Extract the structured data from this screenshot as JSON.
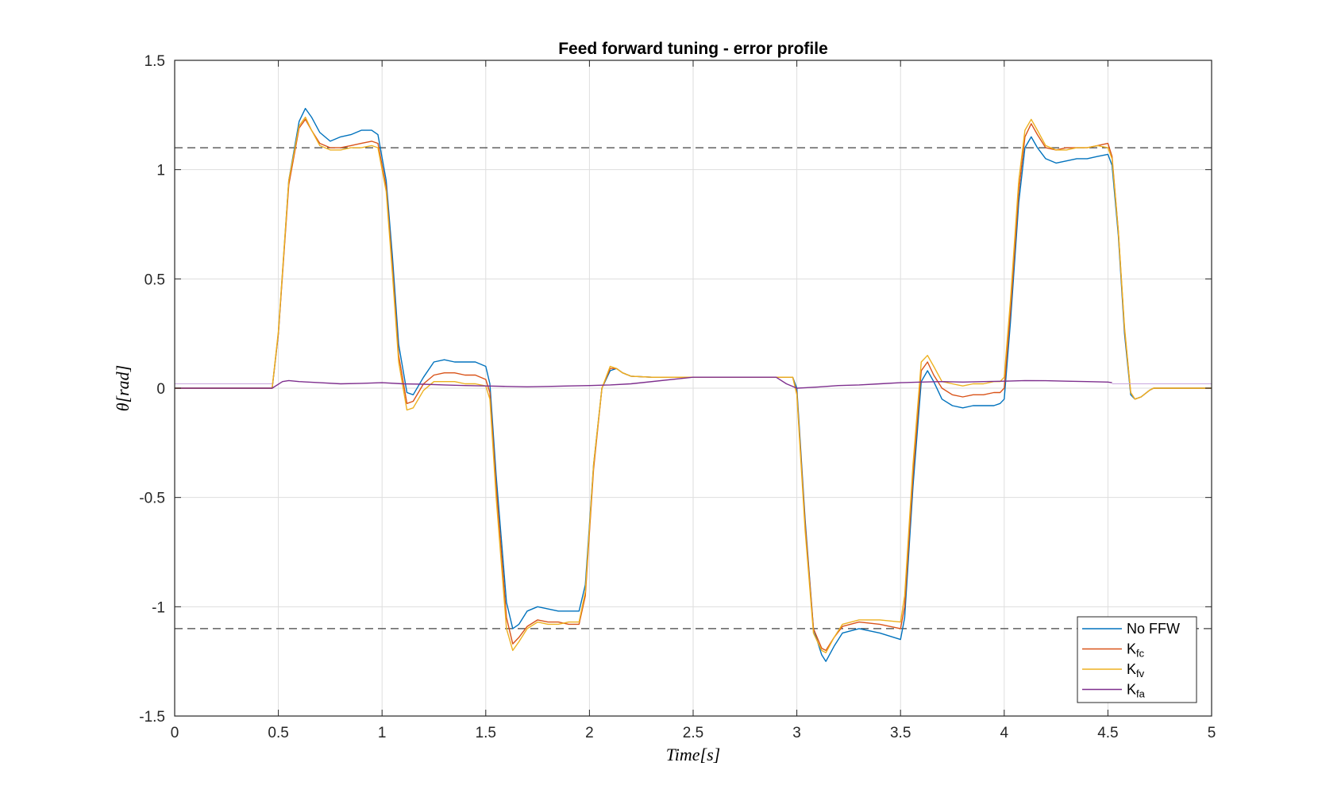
{
  "chart_data": {
    "type": "line",
    "title": "Feed forward tuning - error profile",
    "xlabel": "Time[s]",
    "ylabel": "θ[rad]",
    "xlim": [
      0,
      5
    ],
    "ylim": [
      -1.5,
      1.5
    ],
    "xticks": [
      0,
      0.5,
      1,
      1.5,
      2,
      2.5,
      3,
      3.5,
      4,
      4.5,
      5
    ],
    "xtick_labels": [
      "0",
      "0.5",
      "1",
      "1.5",
      "2",
      "2.5",
      "3",
      "3.5",
      "4",
      "4.5",
      "5"
    ],
    "yticks": [
      1.5,
      1,
      0.5,
      0,
      -0.5,
      -1,
      -1.5
    ],
    "ytick_labels": [
      "1.5",
      "1",
      "0.5",
      "0",
      "-0.5",
      "-1",
      "-1.5"
    ],
    "grid": true,
    "legend_position": "bottom-right",
    "reference_lines": [
      1.1,
      -1.1
    ],
    "series": [
      {
        "name": "No FFW",
        "legend_base": "No FFW",
        "legend_sub": "",
        "color": "#0072BD",
        "x": [
          0,
          0.47,
          0.5,
          0.55,
          0.6,
          0.63,
          0.66,
          0.7,
          0.75,
          0.8,
          0.85,
          0.9,
          0.95,
          0.98,
          1.02,
          1.05,
          1.08,
          1.12,
          1.15,
          1.2,
          1.25,
          1.3,
          1.35,
          1.4,
          1.45,
          1.5,
          1.52,
          1.55,
          1.6,
          1.63,
          1.66,
          1.7,
          1.75,
          1.8,
          1.85,
          1.9,
          1.95,
          1.98,
          2.02,
          2.06,
          2.1,
          2.13,
          2.16,
          2.2,
          2.3,
          2.5,
          2.7,
          2.9,
          2.98,
          3.0,
          3.04,
          3.08,
          3.12,
          3.14,
          3.18,
          3.22,
          3.3,
          3.4,
          3.5,
          3.52,
          3.56,
          3.6,
          3.63,
          3.66,
          3.7,
          3.75,
          3.8,
          3.85,
          3.9,
          3.95,
          3.98,
          4.0,
          4.03,
          4.07,
          4.1,
          4.13,
          4.16,
          4.2,
          4.25,
          4.3,
          4.35,
          4.4,
          4.45,
          4.5,
          4.52,
          4.55,
          4.58,
          4.61,
          4.63,
          4.66,
          4.7,
          4.72,
          5
        ],
        "y": [
          0,
          0,
          0.25,
          0.95,
          1.22,
          1.28,
          1.24,
          1.17,
          1.13,
          1.15,
          1.16,
          1.18,
          1.18,
          1.16,
          0.95,
          0.6,
          0.2,
          -0.02,
          -0.03,
          0.05,
          0.12,
          0.13,
          0.12,
          0.12,
          0.12,
          0.1,
          0.02,
          -0.4,
          -0.98,
          -1.1,
          -1.08,
          -1.02,
          -1.0,
          -1.01,
          -1.02,
          -1.02,
          -1.02,
          -0.9,
          -0.35,
          0.0,
          0.08,
          0.09,
          0.07,
          0.055,
          0.05,
          0.05,
          0.05,
          0.05,
          0.05,
          0.0,
          -0.6,
          -1.1,
          -1.22,
          -1.25,
          -1.18,
          -1.12,
          -1.1,
          -1.12,
          -1.15,
          -1.05,
          -0.45,
          0.03,
          0.08,
          0.03,
          -0.05,
          -0.08,
          -0.09,
          -0.08,
          -0.08,
          -0.08,
          -0.07,
          -0.05,
          0.3,
          0.85,
          1.1,
          1.15,
          1.1,
          1.05,
          1.03,
          1.04,
          1.05,
          1.05,
          1.06,
          1.07,
          1.02,
          0.7,
          0.25,
          -0.03,
          -0.05,
          -0.04,
          -0.01,
          0,
          0
        ]
      },
      {
        "name": "Kfc",
        "legend_base": "K",
        "legend_sub": "fc",
        "color": "#D95319",
        "x": [
          0,
          0.47,
          0.5,
          0.55,
          0.6,
          0.63,
          0.66,
          0.7,
          0.75,
          0.8,
          0.85,
          0.9,
          0.95,
          0.98,
          1.02,
          1.05,
          1.08,
          1.12,
          1.15,
          1.2,
          1.25,
          1.3,
          1.35,
          1.4,
          1.45,
          1.5,
          1.52,
          1.55,
          1.6,
          1.63,
          1.66,
          1.7,
          1.75,
          1.8,
          1.85,
          1.9,
          1.95,
          1.98,
          2.02,
          2.06,
          2.1,
          2.13,
          2.16,
          2.2,
          2.3,
          2.5,
          2.7,
          2.9,
          2.98,
          3.0,
          3.04,
          3.08,
          3.12,
          3.14,
          3.18,
          3.22,
          3.3,
          3.4,
          3.5,
          3.52,
          3.56,
          3.6,
          3.63,
          3.66,
          3.7,
          3.75,
          3.8,
          3.85,
          3.9,
          3.95,
          3.98,
          4.0,
          4.03,
          4.07,
          4.1,
          4.13,
          4.16,
          4.2,
          4.25,
          4.3,
          4.35,
          4.4,
          4.45,
          4.5,
          4.52,
          4.55,
          4.58,
          4.61,
          4.63,
          4.66,
          4.7,
          4.72,
          5
        ],
        "y": [
          0,
          0,
          0.25,
          0.93,
          1.19,
          1.23,
          1.18,
          1.12,
          1.1,
          1.1,
          1.11,
          1.12,
          1.13,
          1.12,
          0.92,
          0.55,
          0.15,
          -0.07,
          -0.06,
          0.02,
          0.06,
          0.07,
          0.07,
          0.06,
          0.06,
          0.04,
          -0.02,
          -0.45,
          -1.05,
          -1.17,
          -1.14,
          -1.09,
          -1.06,
          -1.07,
          -1.07,
          -1.08,
          -1.08,
          -0.95,
          -0.37,
          0.0,
          0.09,
          0.09,
          0.07,
          0.055,
          0.05,
          0.05,
          0.05,
          0.05,
          0.05,
          -0.02,
          -0.62,
          -1.1,
          -1.19,
          -1.2,
          -1.14,
          -1.09,
          -1.07,
          -1.08,
          -1.1,
          -1.0,
          -0.4,
          0.08,
          0.12,
          0.06,
          0.0,
          -0.03,
          -0.04,
          -0.03,
          -0.03,
          -0.02,
          -0.02,
          0.0,
          0.35,
          0.9,
          1.15,
          1.21,
          1.16,
          1.1,
          1.09,
          1.1,
          1.1,
          1.1,
          1.11,
          1.12,
          1.06,
          0.72,
          0.27,
          -0.02,
          -0.05,
          -0.04,
          -0.01,
          0,
          0
        ]
      },
      {
        "name": "Kfv",
        "legend_base": "K",
        "legend_sub": "fv",
        "color": "#EDB120",
        "x": [
          0,
          0.47,
          0.5,
          0.55,
          0.6,
          0.63,
          0.66,
          0.7,
          0.75,
          0.8,
          0.85,
          0.9,
          0.95,
          0.98,
          1.02,
          1.05,
          1.08,
          1.12,
          1.15,
          1.2,
          1.25,
          1.3,
          1.35,
          1.4,
          1.45,
          1.5,
          1.52,
          1.55,
          1.6,
          1.63,
          1.66,
          1.7,
          1.75,
          1.8,
          1.85,
          1.9,
          1.95,
          1.98,
          2.02,
          2.06,
          2.1,
          2.13,
          2.16,
          2.2,
          2.3,
          2.5,
          2.7,
          2.9,
          2.98,
          3.0,
          3.04,
          3.08,
          3.12,
          3.14,
          3.18,
          3.22,
          3.3,
          3.4,
          3.5,
          3.52,
          3.56,
          3.6,
          3.63,
          3.66,
          3.7,
          3.75,
          3.8,
          3.85,
          3.9,
          3.95,
          3.98,
          4.0,
          4.03,
          4.07,
          4.1,
          4.13,
          4.16,
          4.2,
          4.25,
          4.3,
          4.35,
          4.4,
          4.45,
          4.5,
          4.52,
          4.55,
          4.58,
          4.61,
          4.63,
          4.66,
          4.7,
          4.72,
          5
        ],
        "y": [
          0,
          0,
          0.26,
          0.95,
          1.2,
          1.24,
          1.18,
          1.11,
          1.09,
          1.09,
          1.1,
          1.1,
          1.11,
          1.1,
          0.9,
          0.52,
          0.12,
          -0.1,
          -0.09,
          -0.01,
          0.03,
          0.03,
          0.03,
          0.02,
          0.02,
          0.01,
          -0.05,
          -0.5,
          -1.1,
          -1.2,
          -1.16,
          -1.1,
          -1.07,
          -1.08,
          -1.08,
          -1.07,
          -1.07,
          -0.93,
          -0.35,
          0.0,
          0.1,
          0.09,
          0.07,
          0.055,
          0.05,
          0.05,
          0.05,
          0.05,
          0.05,
          -0.03,
          -0.65,
          -1.12,
          -1.2,
          -1.21,
          -1.14,
          -1.08,
          -1.06,
          -1.06,
          -1.07,
          -0.95,
          -0.35,
          0.12,
          0.15,
          0.1,
          0.03,
          0.02,
          0.01,
          0.02,
          0.02,
          0.03,
          0.03,
          0.05,
          0.4,
          0.95,
          1.18,
          1.23,
          1.18,
          1.11,
          1.09,
          1.09,
          1.1,
          1.1,
          1.11,
          1.1,
          1.05,
          0.72,
          0.28,
          -0.02,
          -0.05,
          -0.04,
          -0.01,
          0,
          0
        ]
      },
      {
        "name": "Kfa",
        "legend_base": "K",
        "legend_sub": "fa",
        "color": "#7E2F8E",
        "x": [
          0,
          0.47,
          0.52,
          0.55,
          0.6,
          0.7,
          0.8,
          0.9,
          1.0,
          1.1,
          1.2,
          1.3,
          1.4,
          1.5,
          1.6,
          1.7,
          1.8,
          1.9,
          2.0,
          2.1,
          2.2,
          2.5,
          2.9,
          2.95,
          3.0,
          3.1,
          3.2,
          3.3,
          3.4,
          3.5,
          3.6,
          3.7,
          3.8,
          3.9,
          4.0,
          4.1,
          4.2,
          4.3,
          4.4,
          4.5,
          4.52
        ],
        "y": [
          0,
          0,
          0.03,
          0.035,
          0.03,
          0.025,
          0.02,
          0.022,
          0.025,
          0.02,
          0.018,
          0.015,
          0.012,
          0.01,
          0.008,
          0.006,
          0.008,
          0.01,
          0.012,
          0.015,
          0.02,
          0.05,
          0.05,
          0.02,
          0.0,
          0.005,
          0.012,
          0.015,
          0.02,
          0.025,
          0.028,
          0.03,
          0.028,
          0.03,
          0.032,
          0.035,
          0.034,
          0.032,
          0.03,
          0.028,
          0.025
        ]
      }
    ]
  }
}
